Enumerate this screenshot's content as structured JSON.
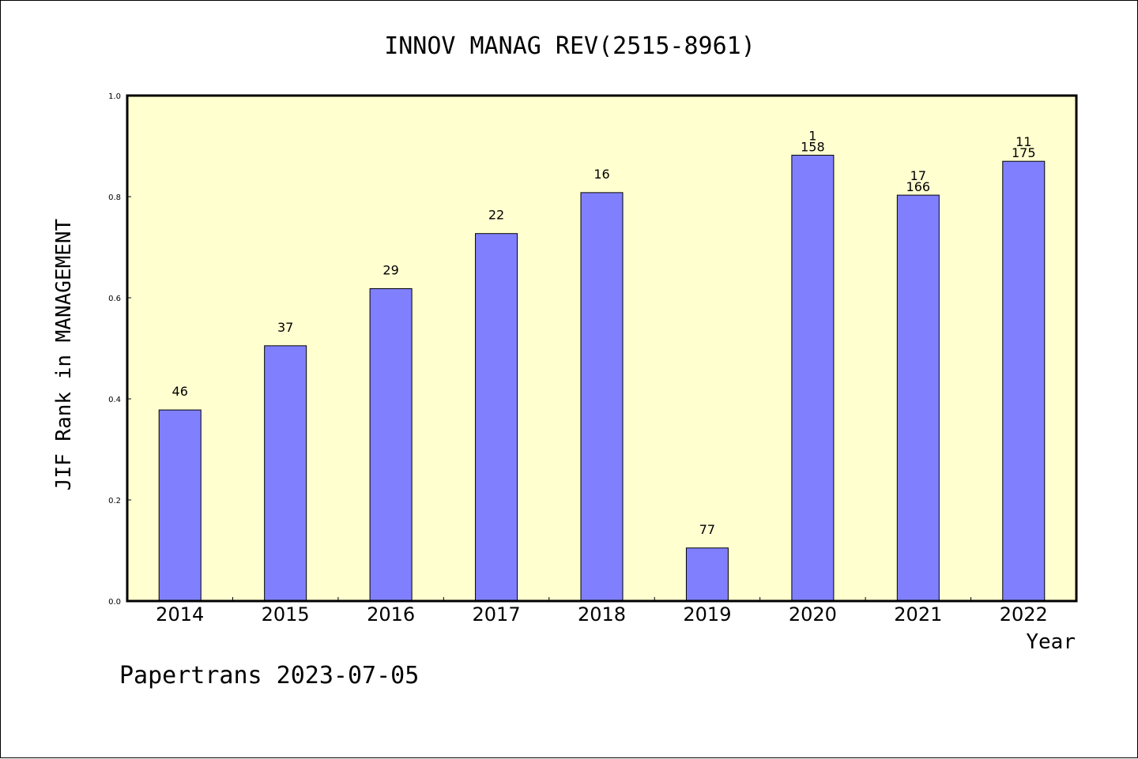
{
  "chart_data": {
    "type": "bar",
    "title": "INNOV MANAG REV(2515-8961)",
    "xlabel": "Year",
    "ylabel": "JIF Rank in MANAGEMENT",
    "ylim": [
      0,
      1.0
    ],
    "yticks": [
      "0.0",
      "0.2",
      "0.4",
      "0.6",
      "0.8",
      "1.0"
    ],
    "categories": [
      "2014",
      "2015",
      "2016",
      "2017",
      "2018",
      "2019",
      "2020",
      "2021",
      "2022"
    ],
    "values": [
      0.378,
      0.505,
      0.618,
      0.727,
      0.808,
      0.105,
      0.882,
      0.803,
      0.87
    ],
    "labels": [
      [
        "46"
      ],
      [
        "37"
      ],
      [
        "29"
      ],
      [
        "22"
      ],
      [
        "16"
      ],
      [
        "77"
      ],
      [
        "1",
        "158"
      ],
      [
        "17",
        "166"
      ],
      [
        "11",
        "175"
      ]
    ],
    "colors": {
      "plot_background": "#ffffd0",
      "bar_fill": "#8080ff",
      "bar_stroke": "#000000"
    },
    "grid": false
  },
  "footer": "Papertrans 2023-07-05"
}
